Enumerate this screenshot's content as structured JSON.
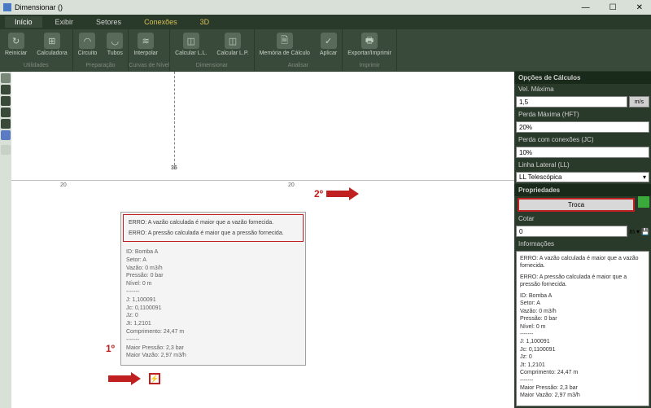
{
  "window": {
    "title": "Dimensionar ()"
  },
  "menu": {
    "tabs": [
      "Início",
      "Exibir",
      "Setores",
      "Conexões",
      "3D"
    ],
    "active": 0
  },
  "ribbon": {
    "groups": [
      {
        "label": "Utilidades",
        "buttons": [
          {
            "label": "Reiniciar",
            "icon": "↻"
          },
          {
            "label": "Calculadora",
            "icon": "⊞"
          }
        ]
      },
      {
        "label": "Preparação",
        "buttons": [
          {
            "label": "Circuito",
            "icon": "◠"
          },
          {
            "label": "Tubos",
            "icon": "◡"
          }
        ]
      },
      {
        "label": "Curvas de Nível",
        "buttons": [
          {
            "label": "Interpolar",
            "icon": "≋"
          }
        ]
      },
      {
        "label": "Dimensionar",
        "buttons": [
          {
            "label": "Calcular L.L.",
            "icon": "◫"
          },
          {
            "label": "Calcular L.P.",
            "icon": "◫"
          }
        ]
      },
      {
        "label": "Analisar",
        "buttons": [
          {
            "label": "Memória de Cálculo",
            "icon": "🗎"
          },
          {
            "label": "Aplicar",
            "icon": "✓"
          }
        ]
      },
      {
        "label": "Imprimir",
        "buttons": [
          {
            "label": "Exportar/Imprimir",
            "icon": "🖶"
          }
        ]
      }
    ]
  },
  "canvas": {
    "ticks": {
      "left": "20",
      "right": "20",
      "origin": "35"
    }
  },
  "tooltip": {
    "err1": "ERRO: A vazão calculada é maior que a vazão fornecida.",
    "err2": "ERRO: A pressão calculada é maior que a pressão fornecida.",
    "lines": [
      "ID: Bomba A",
      "Setor: A",
      "Vazão: 0 m3/h",
      "Pressão: 0 bar",
      "Nível: 0 m",
      "-------",
      "J: 1,100091",
      "Jc: 0,1100091",
      "Jz: 0",
      "Jt: 1,2101",
      "Comprimento: 24,47 m",
      "-------",
      "Maior Pressão: 2,3 bar",
      "Maior Vazão: 2,97 m3/h"
    ]
  },
  "annotations": {
    "first": "1º",
    "second": "2º"
  },
  "right": {
    "header": "Opções de Cálculos",
    "velmax_label": "Vel. Máxima",
    "velmax_value": "1,5",
    "velmax_unit": "m/s",
    "perda_label": "Perda Máxima (HFT)",
    "perda_value": "20%",
    "jc_label": "Perda com conexões (JC)",
    "jc_value": "10%",
    "ll_label": "Linha Lateral (LL)",
    "ll_value": "LL Telescópica",
    "props_header": "Propriedades",
    "troca": "Troca",
    "cotar_label": "Cotar",
    "cotar_value": "0",
    "cotar_unit": "m",
    "info_header": "Informações",
    "info_err1": "ERRO: A vazão calculada é maior que a vazão fornecida.",
    "info_err2": "ERRO: A pressão calculada é maior que a pressão fornecida.",
    "info_lines": [
      "ID: Bomba A",
      "Setor: A",
      "Vazão: 0 m3/h",
      "Pressão: 0 bar",
      "Nível: 0 m",
      "-------",
      "J: 1,100091",
      "Jc: 0,1100091",
      "Jz: 0",
      "Jt: 1,2101",
      "Comprimento: 24,47 m",
      "-------",
      "Maior Pressão: 2,3 bar",
      "Maior Vazão: 2,97 m3/h"
    ]
  }
}
